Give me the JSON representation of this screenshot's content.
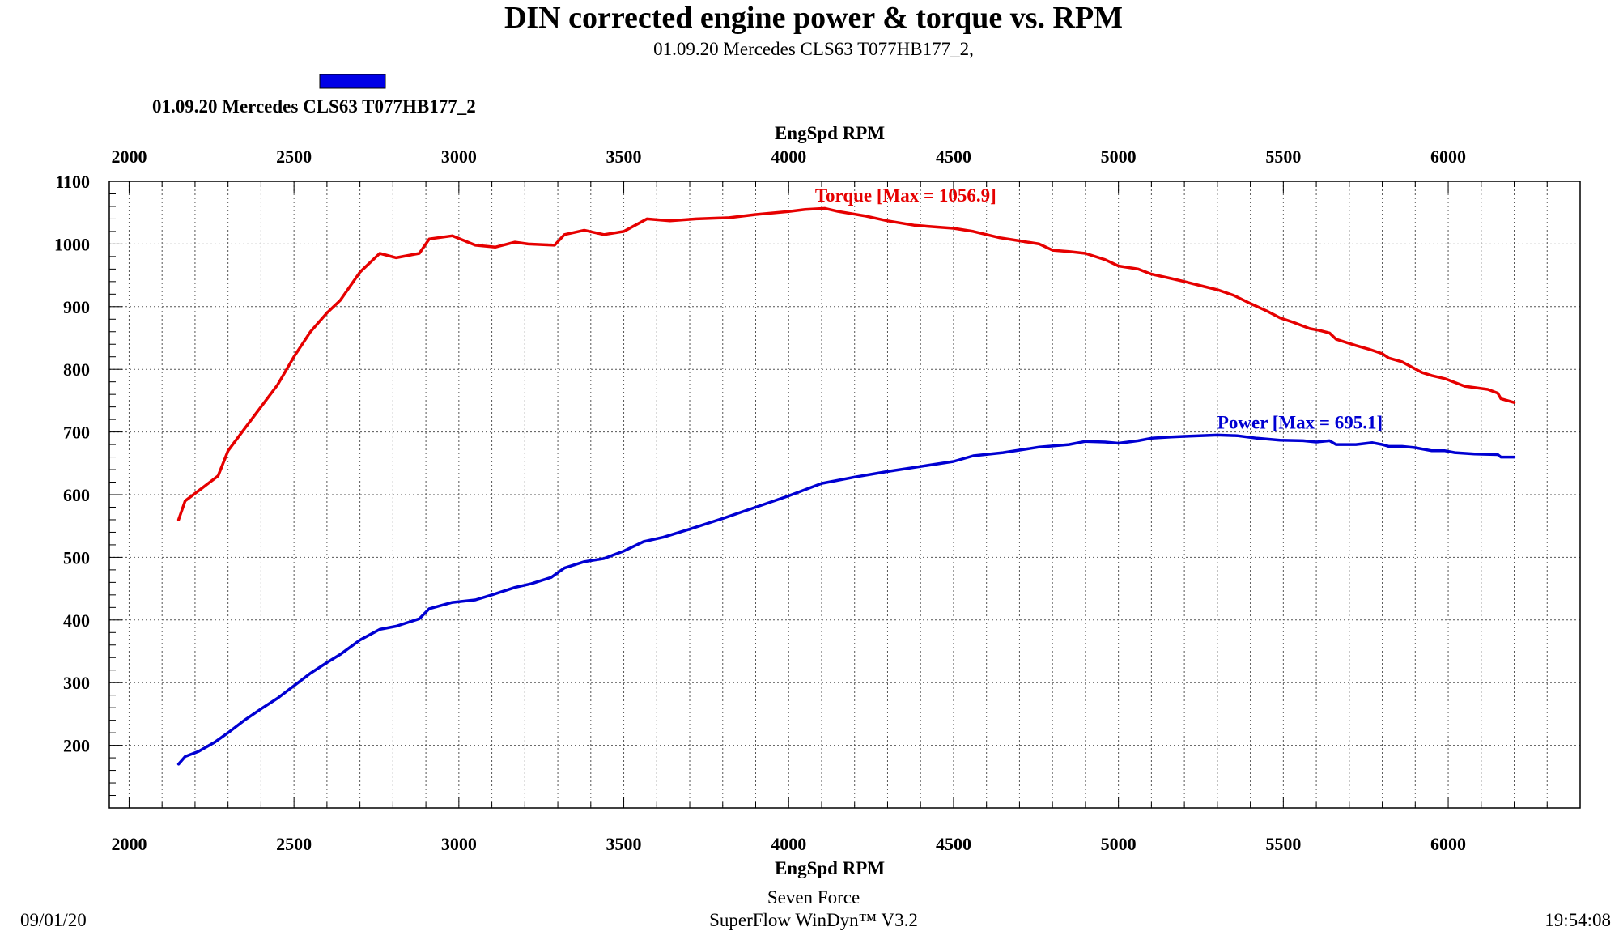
{
  "chart_data": {
    "type": "line",
    "title": "DIN corrected engine power & torque vs. RPM",
    "subtitle": "01.09.20 Mercedes CLS63  T077HB177_2,",
    "legend": {
      "label": "01.09.20 Mercedes CLS63  T077HB177_2",
      "color": "#0000e6",
      "placement": "top-left"
    },
    "xlabel": "EngSpd RPM",
    "xlim": [
      1940,
      6400
    ],
    "ylim": [
      100,
      1100
    ],
    "x_ticks": [
      2000,
      2500,
      3000,
      3500,
      4000,
      4500,
      5000,
      5500,
      6000
    ],
    "y_ticks": [
      200,
      300,
      400,
      500,
      600,
      700,
      800,
      900,
      1000,
      1100
    ],
    "grid": true,
    "series": [
      {
        "name": "Torque",
        "color": "#e60000",
        "annotation": "Torque [Max = 1056.9]",
        "annotation_at": [
          4080,
          1068
        ],
        "x": [
          2150,
          2170,
          2220,
          2270,
          2300,
          2350,
          2400,
          2450,
          2500,
          2550,
          2600,
          2640,
          2700,
          2760,
          2810,
          2880,
          2910,
          2980,
          3050,
          3110,
          3170,
          3210,
          3290,
          3320,
          3380,
          3440,
          3500,
          3570,
          3640,
          3720,
          3820,
          3900,
          4000,
          4050,
          4110,
          4150,
          4230,
          4300,
          4380,
          4450,
          4500,
          4560,
          4640,
          4700,
          4760,
          4800,
          4850,
          4900,
          4960,
          5000,
          5060,
          5100,
          5160,
          5200,
          5260,
          5300,
          5350,
          5400,
          5450,
          5490,
          5530,
          5580,
          5610,
          5640,
          5660,
          5720,
          5760,
          5800,
          5820,
          5860,
          5920,
          5950,
          5990,
          6050,
          6120,
          6150,
          6160,
          6200
        ],
        "values": [
          560,
          590,
          610,
          630,
          670,
          705,
          740,
          775,
          820,
          860,
          890,
          910,
          955,
          985,
          978,
          985,
          1008,
          1013,
          998,
          995,
          1003,
          1000,
          998,
          1015,
          1022,
          1015,
          1020,
          1040,
          1037,
          1040,
          1042,
          1047,
          1052,
          1055,
          1056.9,
          1052,
          1045,
          1037,
          1030,
          1027,
          1025,
          1020,
          1010,
          1005,
          1000,
          990,
          988,
          985,
          975,
          965,
          960,
          952,
          945,
          940,
          932,
          927,
          918,
          905,
          893,
          882,
          875,
          865,
          862,
          858,
          848,
          838,
          832,
          825,
          818,
          812,
          795,
          790,
          785,
          773,
          768,
          762,
          753,
          747
        ]
      },
      {
        "name": "Power",
        "color": "#0000d2",
        "annotation": "Power  [Max = 695.1]",
        "annotation_at": [
          5300,
          705
        ],
        "x": [
          2150,
          2170,
          2210,
          2260,
          2300,
          2350,
          2400,
          2450,
          2500,
          2550,
          2600,
          2640,
          2700,
          2760,
          2810,
          2880,
          2910,
          2980,
          3050,
          3100,
          3170,
          3220,
          3280,
          3320,
          3380,
          3440,
          3500,
          3560,
          3620,
          3700,
          3800,
          3900,
          4000,
          4100,
          4200,
          4300,
          4400,
          4500,
          4560,
          4650,
          4760,
          4850,
          4900,
          4960,
          5000,
          5060,
          5100,
          5160,
          5200,
          5300,
          5360,
          5420,
          5490,
          5560,
          5600,
          5640,
          5660,
          5720,
          5770,
          5800,
          5820,
          5860,
          5900,
          5950,
          5990,
          6020,
          6080,
          6150,
          6160,
          6200
        ],
        "values": [
          170,
          182,
          190,
          205,
          220,
          240,
          258,
          275,
          295,
          315,
          332,
          345,
          368,
          385,
          390,
          402,
          418,
          428,
          432,
          440,
          452,
          458,
          468,
          483,
          493,
          498,
          510,
          525,
          532,
          545,
          562,
          580,
          598,
          618,
          628,
          637,
          645,
          653,
          662,
          667,
          676,
          680,
          685,
          684,
          682,
          686,
          690,
          692,
          693,
          695.1,
          694,
          690,
          687,
          686,
          684,
          686,
          680,
          680,
          683,
          680,
          677,
          677,
          675,
          670,
          670,
          667,
          665,
          664,
          660,
          660
        ]
      }
    ]
  },
  "footer": {
    "date": "09/01/20",
    "company": "Seven Force",
    "software": "SuperFlow WinDyn™ V3.2",
    "time": "19:54:08"
  }
}
